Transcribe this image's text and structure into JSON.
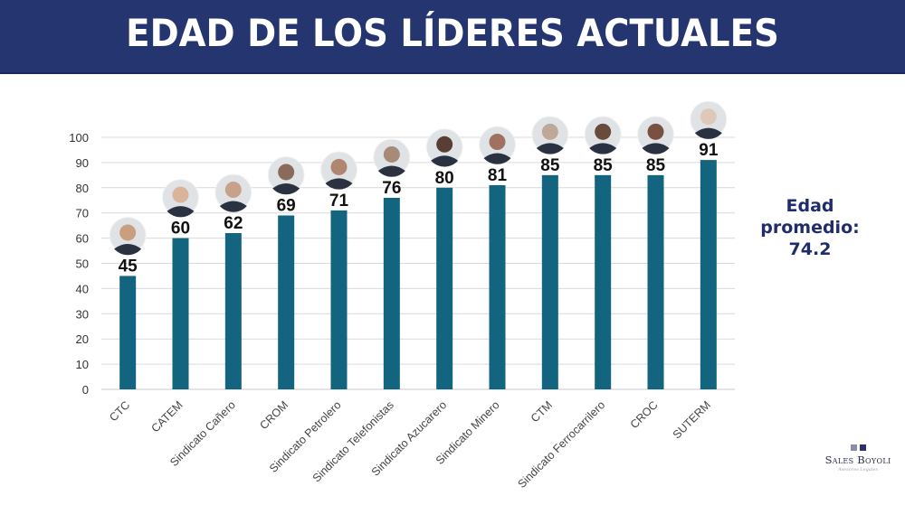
{
  "header": {
    "title": "EDAD DE LOS LÍDERES ACTUALES"
  },
  "average": {
    "label_line1": "Edad",
    "label_line2": "promedio:",
    "value": "74.2"
  },
  "logo": {
    "name": "Sales Boyoli",
    "subtitle": "Asesores Legales"
  },
  "colors": {
    "header_bg": "#24356f",
    "bar": "#13647f",
    "grid": "#d9d9d9",
    "avg_text": "#1f2d6b"
  },
  "chart_data": {
    "type": "bar",
    "title": "EDAD DE LOS LÍDERES ACTUALES",
    "xlabel": "",
    "ylabel": "",
    "ylim": [
      0,
      100
    ],
    "yticks": [
      0,
      10,
      20,
      30,
      40,
      50,
      60,
      70,
      80,
      90,
      100
    ],
    "grid": true,
    "categories": [
      "CTC",
      "CATEM",
      "Sindicato Cañero",
      "CROM",
      "Sindicato Petrolero",
      "Sindicato Telefonistas",
      "Sindicato Azucarero",
      "Sindicato Minero",
      "CTM",
      "Sindicato Ferrocarrilero",
      "CROC",
      "SUTERM"
    ],
    "values": [
      45,
      60,
      62,
      69,
      71,
      76,
      80,
      81,
      85,
      85,
      85,
      91
    ],
    "data_labels": [
      "45",
      "60",
      "62",
      "69",
      "71",
      "76",
      "80",
      "81",
      "85",
      "85",
      "85",
      "91"
    ],
    "annotations": [
      "leader-photo above each bar"
    ]
  }
}
